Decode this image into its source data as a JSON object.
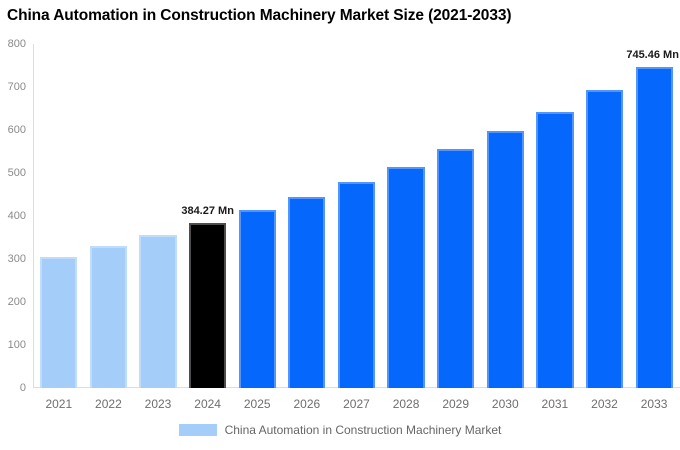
{
  "chart_data": {
    "type": "bar",
    "title": "China Automation in Construction Machinery Market Size (2021-2033)",
    "xlabel": "",
    "ylabel": "",
    "unit": "Mn",
    "categories": [
      "2021",
      "2022",
      "2023",
      "2024",
      "2025",
      "2026",
      "2027",
      "2028",
      "2029",
      "2030",
      "2031",
      "2032",
      "2033"
    ],
    "values": [
      305,
      330,
      356,
      384.27,
      413,
      444,
      479,
      515,
      555,
      598,
      643,
      692,
      745.46
    ],
    "bar_colors": [
      "#A4CDF9",
      "#A4CDF9",
      "#A4CDF9",
      "#000000",
      "#0667FD",
      "#0667FD",
      "#0667FD",
      "#0667FD",
      "#0667FD",
      "#0667FD",
      "#0667FD",
      "#0667FD",
      "#0667FD"
    ],
    "y_ticks": [
      0,
      100,
      200,
      300,
      400,
      500,
      600,
      700,
      800
    ],
    "ylim": [
      0,
      800
    ],
    "grid": false,
    "annotations": [
      {
        "category": "2024",
        "text": "384.27 Mn"
      },
      {
        "category": "2033",
        "text": "745.46 Mn"
      }
    ],
    "legend": {
      "position": "bottom",
      "label": "China Automation in Construction Machinery Market",
      "swatch_color": "#A4CDF9"
    },
    "colors": {
      "historical_bar": "#A4CDF9",
      "highlight_bar": "#000000",
      "forecast_bar": "#0667FD",
      "axis_line": "#dddddd",
      "axis_text": "#8a8a8a",
      "title_text": "#000000"
    }
  }
}
